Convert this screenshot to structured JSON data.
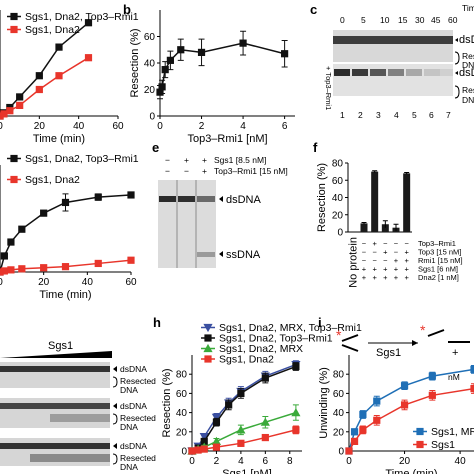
{
  "panel_letters": [
    "b",
    "c",
    "e",
    "f",
    "h",
    "i"
  ],
  "chart_data": [
    {
      "type": "line",
      "panel": "a-top",
      "xlabel": "Time (min)",
      "xticks": [
        "0",
        "20",
        "40",
        "60"
      ],
      "xlim": [
        0,
        60
      ],
      "ylim": [
        0,
        100
      ],
      "series": [
        {
          "name": "Sgs1, Dna2, Top3–Rmi1",
          "color": "#111111",
          "marker": "square",
          "x": [
            0,
            2,
            5,
            10,
            20,
            30,
            45
          ],
          "y": [
            0,
            3,
            8,
            18,
            38,
            65,
            88
          ]
        },
        {
          "name": "Sgs1, Dna2",
          "color": "#e8352b",
          "marker": "square",
          "x": [
            0,
            2,
            5,
            10,
            20,
            30,
            45
          ],
          "y": [
            0,
            2,
            5,
            10,
            25,
            38,
            55
          ]
        }
      ]
    },
    {
      "type": "line",
      "panel": "b",
      "xlabel": "Top3–Rmi1 [nM]",
      "ylabel": "Resection (%)",
      "xticks": [
        "0",
        "2",
        "4",
        "6"
      ],
      "yticks": [
        "0",
        "20",
        "40",
        "60"
      ],
      "xlim": [
        0,
        6.5
      ],
      "ylim": [
        0,
        80
      ],
      "series": [
        {
          "name": "",
          "color": "#111111",
          "marker": "square",
          "x": [
            0,
            0.1,
            0.25,
            0.5,
            1,
            2,
            4,
            6
          ],
          "y": [
            18,
            22,
            35,
            42,
            50,
            48,
            55,
            47
          ],
          "err": [
            5,
            5,
            6,
            7,
            8,
            10,
            9,
            10
          ]
        }
      ]
    },
    {
      "type": "line",
      "panel": "a-bottom",
      "xlabel": "Time (min)",
      "xticks": [
        "0",
        "20",
        "40",
        "60"
      ],
      "xlim": [
        0,
        60
      ],
      "ylim": [
        0,
        100
      ],
      "series": [
        {
          "name": "Sgs1, Dna2, Top3–Rmi1",
          "color": "#111111",
          "marker": "square",
          "x": [
            0,
            2,
            5,
            10,
            20,
            30,
            45,
            60
          ],
          "y": [
            0,
            15,
            28,
            40,
            55,
            65,
            70,
            72
          ],
          "err": [
            0,
            0,
            0,
            0,
            0,
            8,
            3,
            0
          ]
        },
        {
          "name": "Sgs1, Dna2",
          "color": "#e8352b",
          "marker": "square",
          "x": [
            0,
            2,
            5,
            10,
            20,
            30,
            45,
            60
          ],
          "y": [
            0,
            1,
            2,
            3,
            4,
            5,
            8,
            11
          ],
          "err": [
            0,
            0,
            0,
            2,
            2,
            2,
            2,
            2
          ]
        }
      ]
    },
    {
      "type": "bar",
      "panel": "f",
      "ylabel": "Resection (%)",
      "yticks": [
        "0",
        "20",
        "40",
        "60",
        "80"
      ],
      "ylim": [
        0,
        80
      ],
      "values": [
        0,
        10,
        70,
        9,
        5,
        68
      ],
      "errors": [
        0,
        1,
        1,
        4,
        4,
        1
      ],
      "no_protein_label": "No protein",
      "row_labels": [
        "Top3–Rmi1",
        "Top3 [15 nM]",
        "Rmi1 [15 nM]",
        "Sgs1 [6 nM]",
        "Dna2 [1 nM]"
      ],
      "row_signs": [
        [
          "−",
          "−",
          "+",
          "−",
          "−",
          "−"
        ],
        [
          "−",
          "−",
          "−",
          "+",
          "−",
          "+"
        ],
        [
          "−",
          "−",
          "−",
          "−",
          "+",
          "+"
        ],
        [
          "−",
          "+",
          "+",
          "+",
          "+",
          "+"
        ],
        [
          "−",
          "+",
          "+",
          "+",
          "+",
          "+"
        ]
      ]
    },
    {
      "type": "line",
      "panel": "h",
      "xlabel": "Sgs1 [nM]",
      "ylabel": "Resection (%)",
      "xticks": [
        "0",
        "2",
        "4",
        "6",
        "8"
      ],
      "yticks": [
        "0",
        "20",
        "40",
        "60",
        "80"
      ],
      "xlim": [
        0,
        9
      ],
      "ylim": [
        0,
        100
      ],
      "series": [
        {
          "name": "Sgs1, Dna2, MRX, Top3–Rmi1",
          "color": "#3a4fa0",
          "marker": "triangle-down",
          "x": [
            0,
            0.5,
            1,
            2,
            3,
            4,
            6,
            8.5
          ],
          "y": [
            0,
            5,
            15,
            35,
            50,
            62,
            78,
            90
          ],
          "err": [
            0,
            2,
            3,
            4,
            5,
            5,
            5,
            4
          ]
        },
        {
          "name": "Sgs1, Dna2, Top3–Rmi1",
          "color": "#111111",
          "marker": "square",
          "x": [
            0,
            0.5,
            1,
            2,
            3,
            4,
            6,
            8.5
          ],
          "y": [
            0,
            3,
            10,
            30,
            48,
            60,
            76,
            88
          ],
          "err": [
            0,
            2,
            3,
            4,
            5,
            5,
            5,
            4
          ]
        },
        {
          "name": "Sgs1, Dna2, MRX",
          "color": "#3aaa3a",
          "marker": "triangle",
          "x": [
            0,
            0.5,
            1,
            2,
            4,
            6,
            8.5
          ],
          "y": [
            0,
            2,
            4,
            10,
            22,
            30,
            40
          ],
          "err": [
            0,
            1,
            2,
            3,
            5,
            6,
            8
          ]
        },
        {
          "name": "Sgs1, Dna2",
          "color": "#e8352b",
          "marker": "square",
          "x": [
            0,
            0.5,
            1,
            2,
            4,
            6,
            8.5
          ],
          "y": [
            0,
            1,
            2,
            4,
            8,
            14,
            22
          ],
          "err": [
            0,
            1,
            1,
            2,
            3,
            3,
            4
          ]
        }
      ]
    },
    {
      "type": "line",
      "panel": "i",
      "xlabel": "Time (min)",
      "ylabel": "Unwinding (%)",
      "xticks": [
        "0",
        "20",
        "40"
      ],
      "yticks": [
        "0",
        "20",
        "40",
        "60",
        "80"
      ],
      "xlim": [
        0,
        45
      ],
      "ylim": [
        0,
        100
      ],
      "series": [
        {
          "name": "Sgs1, MRX",
          "color": "#1f6fb6",
          "marker": "square",
          "x": [
            0,
            2,
            5,
            10,
            20,
            30,
            45
          ],
          "y": [
            0,
            20,
            38,
            52,
            68,
            78,
            85
          ],
          "err": [
            0,
            3,
            4,
            5,
            4,
            4,
            4
          ]
        },
        {
          "name": "Sgs1",
          "color": "#e8352b",
          "marker": "square",
          "x": [
            0,
            2,
            5,
            10,
            20,
            30,
            45
          ],
          "y": [
            0,
            10,
            22,
            32,
            48,
            58,
            65
          ],
          "err": [
            0,
            3,
            4,
            5,
            5,
            5,
            5
          ]
        }
      ]
    }
  ],
  "gels": {
    "c": {
      "header": "Time",
      "times": [
        "0",
        "5",
        "10",
        "15",
        "30",
        "45",
        "60"
      ],
      "lanes": [
        "1",
        "2",
        "3",
        "4",
        "5",
        "6",
        "7"
      ],
      "label_dsdna": "dsD",
      "label_resected": "Resect",
      "label_dna": "DNA",
      "label_dsdna_2": "dsD",
      "label_resected_2": "Resec",
      "label_dna_2": "DN",
      "side_label": "+ Top3–Rmi1"
    },
    "e": {
      "lane_signs_sgs1": [
        "−",
        "+",
        "+"
      ],
      "lane_signs_top3": [
        "−",
        "−",
        "+"
      ],
      "sgs1_label": "Sgs1 [8.5 nM]",
      "top3_label": "Top3–Rmi1 [15 nM]",
      "dsdna_label": "dsDNA",
      "ssdna_label": "ssDNA"
    },
    "g": {
      "title": "Sgs1",
      "rows": [
        {
          "l1": "dsDNA",
          "l2": "Resected",
          "l3": "DNA"
        },
        {
          "l1": "dsDNA",
          "l2": "Resected",
          "l3": "DNA"
        },
        {
          "l1": "dsDNA",
          "l2": "Resected",
          "l3": "DNA"
        }
      ]
    }
  },
  "schematic_i": {
    "label": "Sgs1",
    "right_fragment": "+",
    "right_fragment_2": "nM"
  }
}
